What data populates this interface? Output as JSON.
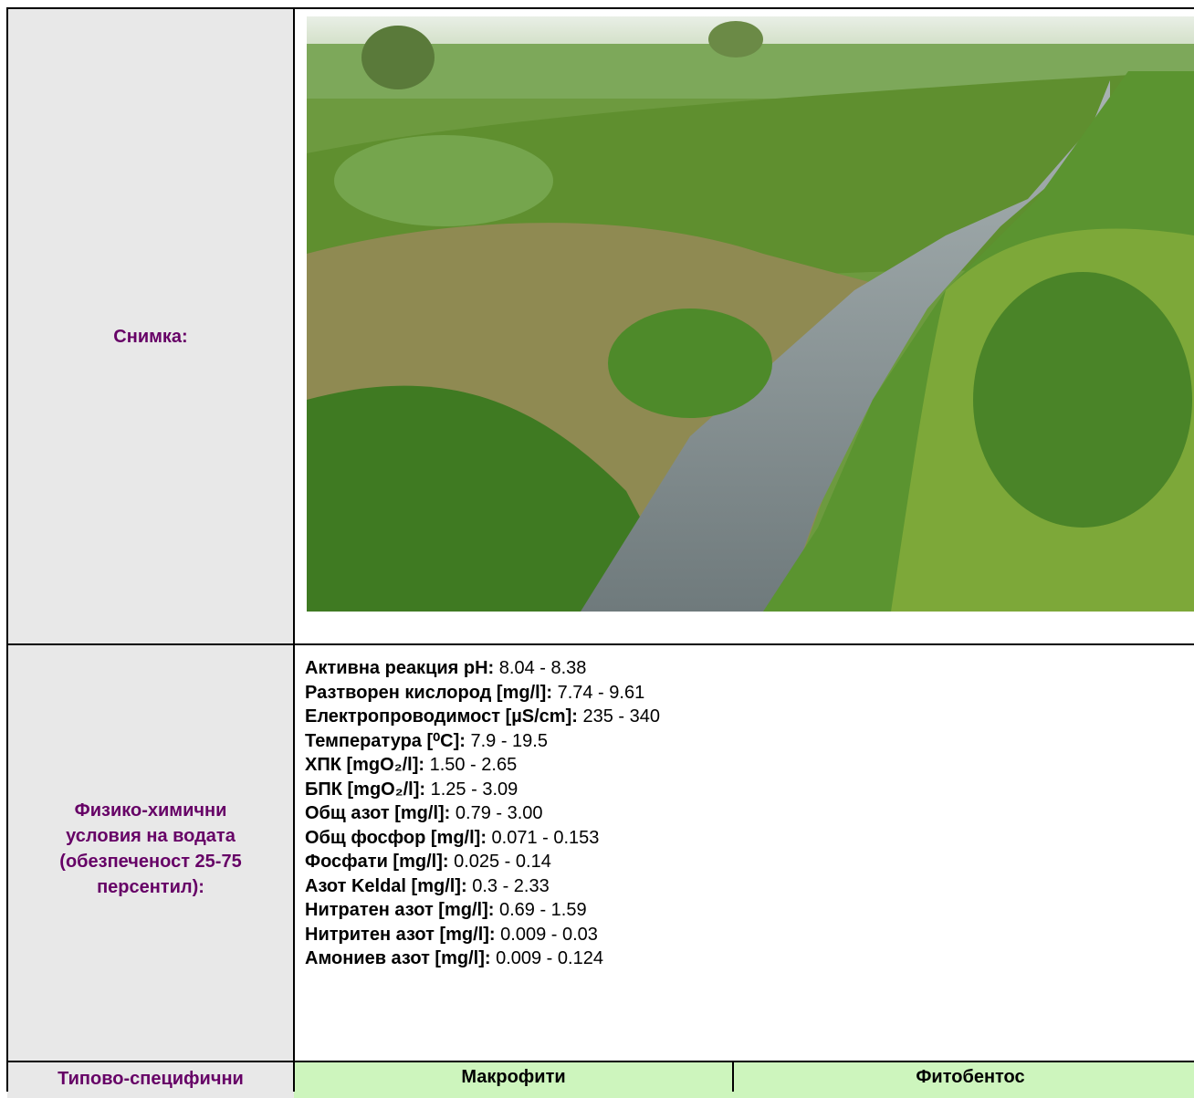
{
  "rows": [
    {
      "label": "Снимка:"
    },
    {
      "label_lines": [
        "Физико-химични",
        "условия на водата",
        "(обезпеченост 25-75",
        "персентил):"
      ],
      "parameters": [
        {
          "name": "Активна реакция pH:",
          "value": "8.04 - 8.38"
        },
        {
          "name": "Разтворен кислород [mg/l]:",
          "value": "7.74 - 9.61"
        },
        {
          "name": "Електропроводимост [µS/cm]:",
          "value": "235 - 340"
        },
        {
          "name": "Температура [⁰C]:",
          "value": "7.9 - 19.5"
        },
        {
          "name": "ХПК [mgO₂/l]:",
          "value": "1.50 - 2.65"
        },
        {
          "name": "БПК [mgO₂/l]:",
          "value": "1.25 - 3.09"
        },
        {
          "name": "Общ азот [mg/l]:",
          "value": "0.79 - 3.00"
        },
        {
          "name": "Общ фосфор [mg/l]:",
          "value": "0.071 - 0.153"
        },
        {
          "name": "Фосфати [mg/l]:",
          "value": "0.025 - 0.14"
        },
        {
          "name": "Азот Keldal [mg/l]:",
          "value": "0.3 - 2.33"
        },
        {
          "name": "Нитратен азот [mg/l]:",
          "value": "0.69 - 1.59"
        },
        {
          "name": "Нитритен азот [mg/l]:",
          "value": "0.009 - 0.03"
        },
        {
          "name": "Амониев азот [mg/l]:",
          "value": "0.009 - 0.124"
        }
      ]
    },
    {
      "label": "Типово-специфични",
      "columns": [
        "Макрофити",
        "Фитобентос"
      ]
    }
  ]
}
